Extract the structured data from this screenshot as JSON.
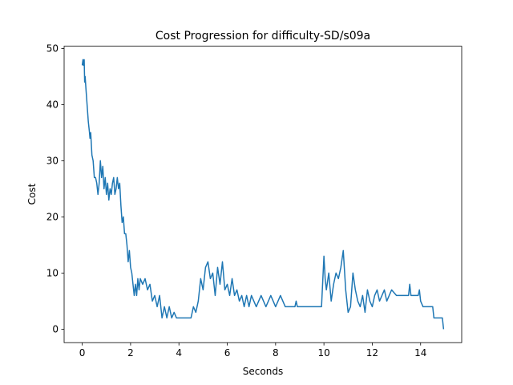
{
  "chart_data": {
    "type": "line",
    "title": "Cost Progression for difficulty-SD/s09a",
    "x_label": "Seconds",
    "y_label": "Cost",
    "color": "#1f77b4",
    "xlim": [
      -0.75,
      15.7
    ],
    "ylim": [
      -2.4,
      50.4
    ],
    "xticks": [
      0,
      2,
      4,
      6,
      8,
      10,
      12,
      14
    ],
    "yticks": [
      0,
      10,
      20,
      30,
      40,
      50
    ],
    "x": [
      0,
      0.03,
      0.05,
      0.08,
      0.1,
      0.12,
      0.15,
      0.2,
      0.25,
      0.3,
      0.32,
      0.35,
      0.4,
      0.45,
      0.5,
      0.55,
      0.6,
      0.65,
      0.7,
      0.75,
      0.8,
      0.85,
      0.9,
      0.95,
      1.0,
      1.05,
      1.1,
      1.15,
      1.2,
      1.25,
      1.3,
      1.35,
      1.4,
      1.45,
      1.5,
      1.55,
      1.6,
      1.65,
      1.7,
      1.75,
      1.8,
      1.85,
      1.9,
      1.95,
      2.0,
      2.05,
      2.1,
      2.15,
      2.2,
      2.25,
      2.3,
      2.35,
      2.4,
      2.5,
      2.6,
      2.7,
      2.8,
      2.9,
      3.0,
      3.1,
      3.2,
      3.3,
      3.4,
      3.5,
      3.6,
      3.7,
      3.8,
      3.9,
      4.5,
      4.6,
      4.7,
      4.8,
      4.9,
      5.0,
      5.1,
      5.2,
      5.3,
      5.4,
      5.5,
      5.6,
      5.7,
      5.8,
      5.9,
      6.0,
      6.1,
      6.2,
      6.3,
      6.4,
      6.5,
      6.6,
      6.7,
      6.8,
      6.9,
      7.0,
      7.2,
      7.4,
      7.6,
      7.8,
      8.0,
      8.2,
      8.4,
      8.8,
      8.85,
      8.9,
      9.9,
      10.0,
      10.05,
      10.1,
      10.2,
      10.3,
      10.4,
      10.5,
      10.6,
      10.7,
      10.8,
      10.9,
      11.0,
      11.1,
      11.2,
      11.3,
      11.4,
      11.5,
      11.6,
      11.7,
      11.8,
      11.9,
      12.0,
      12.1,
      12.2,
      12.3,
      12.4,
      12.5,
      12.6,
      12.7,
      12.8,
      13.0,
      13.5,
      13.55,
      13.6,
      13.9,
      13.95,
      14.0,
      14.1,
      14.5,
      14.55,
      14.9,
      14.95
    ],
    "values": [
      47,
      48,
      47,
      48,
      44,
      45,
      43,
      40,
      37,
      35,
      34,
      35,
      31,
      30,
      27,
      27,
      26,
      24,
      26,
      30,
      27,
      29,
      25,
      27,
      24,
      26,
      23,
      25,
      24,
      26,
      27,
      24,
      25,
      27,
      25,
      26,
      22,
      19,
      20,
      17,
      17,
      15,
      12,
      14,
      11,
      10,
      8,
      6,
      8,
      6,
      9,
      7,
      9,
      8,
      9,
      7,
      8,
      5,
      6,
      4,
      6,
      2,
      4,
      2,
      4,
      2,
      3,
      2,
      2,
      4,
      3,
      5,
      9,
      7,
      11,
      12,
      9,
      10,
      6,
      11,
      8,
      12,
      7,
      8,
      6,
      9,
      6,
      7,
      5,
      6,
      4,
      6,
      4,
      6,
      4,
      6,
      4,
      6,
      4,
      6,
      4,
      4,
      5,
      4,
      4,
      13,
      9,
      7,
      10,
      5,
      8,
      10,
      9,
      11,
      14,
      7,
      3,
      4,
      10,
      7,
      5,
      4,
      6,
      3,
      7,
      5,
      4,
      6,
      7,
      5,
      6,
      7,
      5,
      6,
      7,
      6,
      6,
      8,
      6,
      6,
      7,
      5,
      4,
      4,
      2,
      2,
      0
    ]
  }
}
